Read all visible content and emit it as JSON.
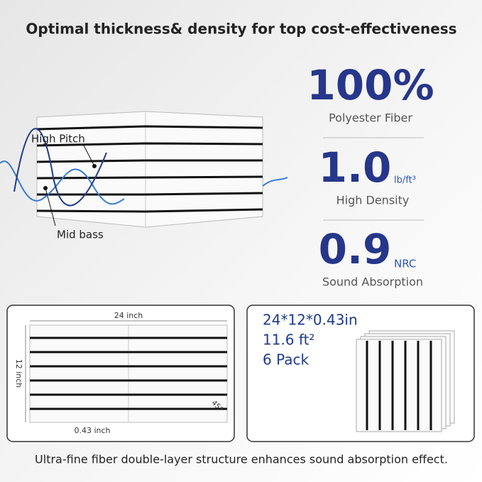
{
  "header": {
    "title": "Optimal thickness& density for top cost-effectiveness"
  },
  "stats": [
    {
      "value": "100%",
      "unit": null,
      "label": "Polyester Fiber"
    },
    {
      "value": "1.0",
      "unit": "lb/ft³",
      "label": "High Density"
    },
    {
      "value": "0.9",
      "unit": "NRC",
      "label": "Sound Absorption"
    }
  ],
  "illustration": {
    "labels": [
      "High Pitch",
      "Mid bass"
    ]
  },
  "dimensions": {
    "width": "24 inch",
    "height": "12 inch",
    "thickness": "0.43 inch",
    "angle": "45°"
  },
  "specs": [
    "24*12*0.43in",
    "11.6 ft²",
    "6 Pack"
  ],
  "footer": {
    "text": "Ultra-fine fiber double-layer structure enhances sound absorption effect."
  }
}
